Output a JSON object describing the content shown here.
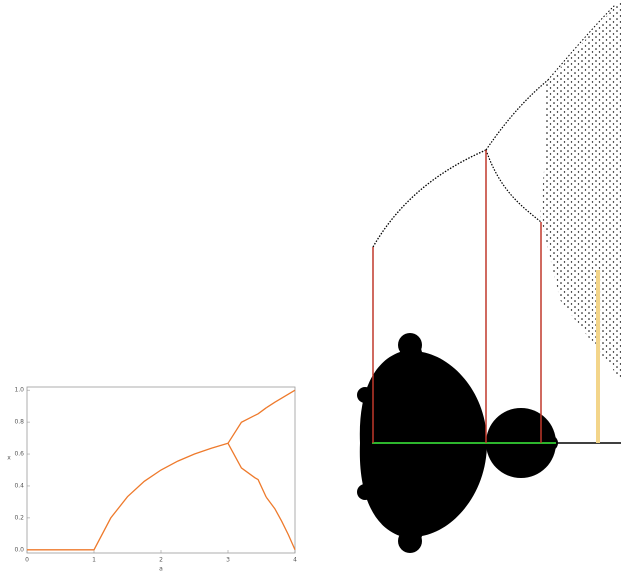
{
  "chart_data": {
    "type": "line",
    "x_label": "a",
    "y_label": "x",
    "xlim": [
      0,
      4
    ],
    "ylim": [
      -0.02,
      1.02
    ],
    "xticks": [
      0,
      1,
      2,
      3,
      4
    ],
    "yticks": [
      {
        "value": 0,
        "label": "0.0"
      },
      {
        "value": 0.2,
        "label": "0.2"
      },
      {
        "value": 0.4,
        "label": "0.4"
      },
      {
        "value": 0.6,
        "label": "0.6"
      },
      {
        "value": 0.8,
        "label": "0.8"
      },
      {
        "value": 1,
        "label": "1.0"
      }
    ],
    "series": [
      {
        "color": "#ee7a2c",
        "x": [
          0,
          1,
          1.25,
          1.5,
          1.75,
          2,
          2.25,
          2.5,
          2.75,
          3
        ],
        "values": [
          0,
          0,
          0.2,
          0.333,
          0.429,
          0.5,
          0.556,
          0.6,
          0.636,
          0.667
        ]
      },
      {
        "color": "#ee7a2c",
        "x": [
          3,
          3.2,
          3.4,
          3.45,
          3.57
        ],
        "values": [
          0.667,
          0.799,
          0.842,
          0.852,
          0.89
        ]
      },
      {
        "color": "#ee7a2c",
        "x": [
          3,
          3.2,
          3.4,
          3.45,
          3.57
        ],
        "values": [
          0.667,
          0.513,
          0.452,
          0.44,
          0.33
        ]
      },
      {
        "color": "#ee7a2c",
        "x": [
          3.57,
          3.7,
          3.8,
          3.9,
          4
        ],
        "values": [
          0.89,
          0.925,
          0.95,
          0.975,
          1
        ]
      },
      {
        "color": "#ee7a2c",
        "x": [
          3.57,
          3.7,
          3.8,
          3.9,
          4
        ],
        "values": [
          0.33,
          0.257,
          0.18,
          0.095,
          0
        ]
      }
    ]
  }
}
